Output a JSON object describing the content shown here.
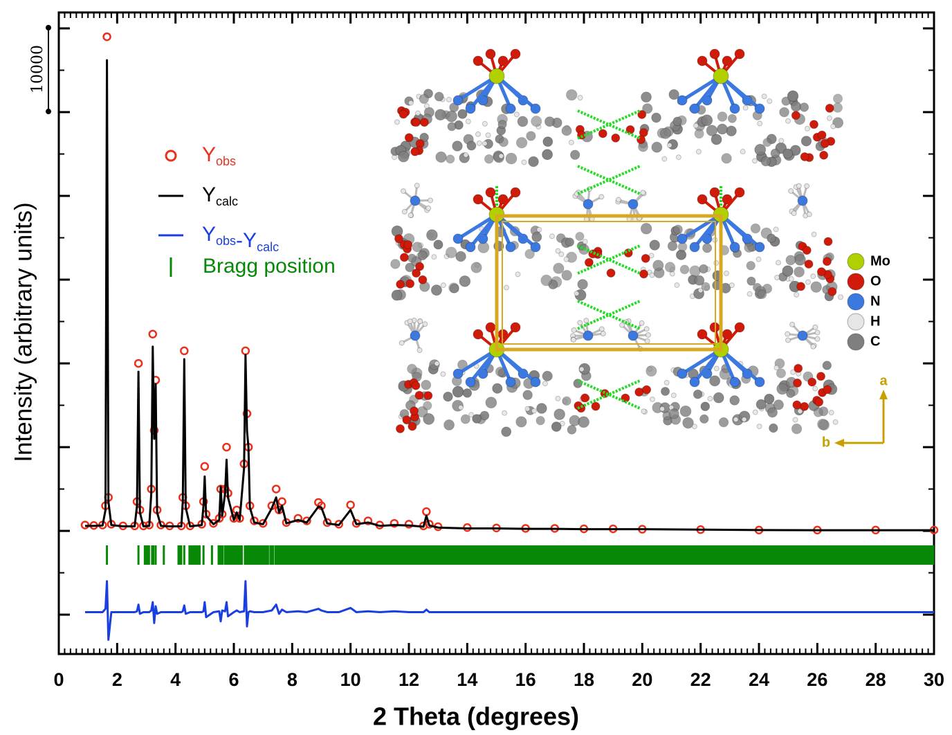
{
  "chart_data": {
    "type": "rietveld",
    "x_label": "2 Theta (degrees)",
    "y_label": "Intensity (arbitrary units)",
    "xlim": [
      0,
      30
    ],
    "xticks": [
      0,
      2,
      4,
      6,
      8,
      10,
      12,
      14,
      16,
      18,
      20,
      22,
      24,
      26,
      28,
      30
    ],
    "x_minor_step": 0.2,
    "ylim": [
      -14700,
      61900
    ],
    "yticks": [
      -10000,
      0,
      10000,
      20000,
      30000,
      40000,
      50000,
      60000
    ],
    "y_minor_step": 5000,
    "scale_bar": 10000,
    "x": [
      0.9,
      1.2,
      1.5,
      1.6,
      1.65,
      1.7,
      1.8,
      2.2,
      2.6,
      2.68,
      2.73,
      2.78,
      2.9,
      3.1,
      3.17,
      3.22,
      3.27,
      3.32,
      3.37,
      3.5,
      3.8,
      4.2,
      4.25,
      4.3,
      4.35,
      4.5,
      4.9,
      4.96,
      5.0,
      5.05,
      5.3,
      5.5,
      5.55,
      5.6,
      5.7,
      5.75,
      5.8,
      6.0,
      6.1,
      6.2,
      6.35,
      6.4,
      6.45,
      6.5,
      6.55,
      6.7,
      7.0,
      7.3,
      7.45,
      7.55,
      7.65,
      7.8,
      8.2,
      8.5,
      8.9,
      9.0,
      9.2,
      9.6,
      10.0,
      10.2,
      10.6,
      11.0,
      11.5,
      12.0,
      12.5,
      12.6,
      12.7,
      13.0,
      14.0,
      15.0,
      16.0,
      17.0,
      18.0,
      19.0,
      20.0,
      22.0,
      24.0,
      26.0,
      28.0,
      30.0
    ],
    "series": [
      {
        "name": "Yobs",
        "style": "markers",
        "color": "#e8321e",
        "values": [
          700,
          650,
          700,
          3000,
          59000,
          4000,
          800,
          600,
          600,
          3500,
          20000,
          2500,
          600,
          700,
          5000,
          23500,
          12000,
          18000,
          2500,
          700,
          600,
          600,
          4000,
          21500,
          3000,
          600,
          800,
          3500,
          7700,
          2000,
          900,
          1500,
          5000,
          2000,
          5000,
          10000,
          4500,
          1500,
          2500,
          1500,
          8000,
          21500,
          14000,
          10000,
          3000,
          1200,
          900,
          3000,
          5000,
          2500,
          3500,
          1000,
          1500,
          1200,
          3400,
          3000,
          1000,
          800,
          3100,
          900,
          1200,
          700,
          900,
          800,
          600,
          2300,
          800,
          500,
          400,
          350,
          300,
          300,
          250,
          250,
          200,
          150,
          100,
          100,
          100,
          100
        ]
      },
      {
        "name": "Ycalc",
        "style": "line",
        "color": "#000000",
        "values": [
          600,
          600,
          650,
          2500,
          56200,
          3500,
          700,
          550,
          550,
          3000,
          19000,
          2200,
          550,
          600,
          4500,
          22000,
          11000,
          17500,
          2200,
          600,
          550,
          550,
          3500,
          20500,
          2800,
          550,
          700,
          3000,
          6500,
          1800,
          800,
          1300,
          5300,
          1800,
          4500,
          8500,
          4000,
          1300,
          2200,
          1300,
          7500,
          21000,
          12000,
          10000,
          2800,
          1000,
          800,
          2700,
          4000,
          2200,
          3000,
          900,
          1300,
          1000,
          2900,
          2800,
          900,
          700,
          2500,
          800,
          1000,
          600,
          700,
          650,
          500,
          1800,
          650,
          400,
          300,
          300,
          250,
          250,
          200,
          200,
          200,
          150,
          100,
          80,
          80,
          80
        ]
      },
      {
        "name": "Yobs-Ycalc",
        "style": "line",
        "color": "#1a3fe0",
        "values": [
          -9700,
          -9700,
          -9700,
          -9300,
          -6000,
          -13000,
          -9700,
          -9700,
          -9700,
          -9600,
          -8800,
          -9900,
          -9700,
          -9700,
          -9500,
          -8500,
          -11000,
          -9000,
          -9900,
          -9700,
          -9700,
          -9700,
          -9600,
          -8900,
          -9900,
          -9700,
          -9700,
          -9600,
          -8500,
          -10300,
          -9700,
          -9600,
          -10800,
          -9500,
          -9600,
          -8500,
          -10200,
          -9700,
          -9500,
          -9700,
          -9600,
          -6000,
          -11400,
          -9700,
          -9600,
          -9700,
          -9700,
          -9500,
          -8800,
          -9900,
          -9400,
          -9700,
          -9600,
          -9700,
          -9300,
          -9500,
          -9700,
          -9700,
          -9200,
          -9700,
          -9600,
          -9700,
          -9600,
          -9700,
          -9700,
          -9400,
          -9700,
          -9700,
          -9700,
          -9700,
          -9700,
          -9700,
          -9700,
          -9700,
          -9700,
          -9700,
          -9700,
          -9700,
          -9700,
          -9700
        ]
      }
    ],
    "bragg": {
      "name": "Bragg position",
      "color": "#078807",
      "positions": [
        1.65,
        2.73,
        3.02,
        3.22,
        3.32,
        3.6,
        4.15,
        4.3,
        4.55,
        4.75,
        4.96,
        5.25,
        5.55,
        5.75,
        5.9,
        6.05,
        6.2,
        6.4,
        6.5,
        6.65,
        6.8,
        6.95,
        7.1,
        7.3,
        7.45,
        7.55,
        7.65,
        7.8,
        7.95,
        8.1,
        8.25,
        8.4,
        8.55,
        8.7,
        8.85,
        9.0,
        9.15,
        9.3,
        9.45,
        9.6,
        9.75,
        9.9,
        10.05,
        10.2,
        10.35,
        10.5,
        10.65,
        10.8,
        10.95,
        11.1,
        11.3,
        11.5,
        11.7,
        11.9,
        12.1,
        12.3,
        12.5,
        12.7,
        12.9,
        13.1,
        13.3,
        13.5,
        13.7,
        13.9,
        14.1,
        14.3,
        14.5,
        14.7,
        14.9,
        15.1,
        15.3,
        15.5,
        15.7,
        15.9,
        16.1,
        16.3,
        16.5,
        16.7,
        16.9,
        17.1,
        17.3,
        17.5,
        17.7,
        17.9,
        18.1,
        18.3,
        18.5,
        18.7,
        18.9,
        19.1,
        19.3,
        19.5,
        19.7,
        19.9,
        20.1,
        20.3,
        20.5,
        20.7,
        20.9,
        21.1,
        21.3,
        21.5,
        21.7,
        21.9,
        22.1,
        22.3,
        22.5,
        22.7,
        22.9,
        23.1,
        23.3,
        23.5,
        23.7,
        23.9,
        24.1,
        24.3,
        24.5,
        24.7,
        24.9,
        25.1,
        25.3,
        25.5,
        25.7,
        25.9,
        26.1,
        26.3,
        26.5,
        26.7,
        26.9,
        27.1,
        27.3,
        27.5,
        27.7,
        27.9,
        28.1,
        28.3,
        28.5,
        28.7,
        28.9,
        29.1,
        29.3,
        29.5,
        29.7,
        29.9
      ]
    },
    "inset": {
      "atoms": [
        {
          "label": "Mo",
          "color": "#b0d000"
        },
        {
          "label": "O",
          "color": "#d01a0a"
        },
        {
          "label": "N",
          "color": "#3b78e0"
        },
        {
          "label": "H",
          "color": "#e6e6e6"
        },
        {
          "label": "C",
          "color": "#7f7f7f"
        }
      ],
      "axis_a": "a",
      "axis_b": "b"
    }
  }
}
